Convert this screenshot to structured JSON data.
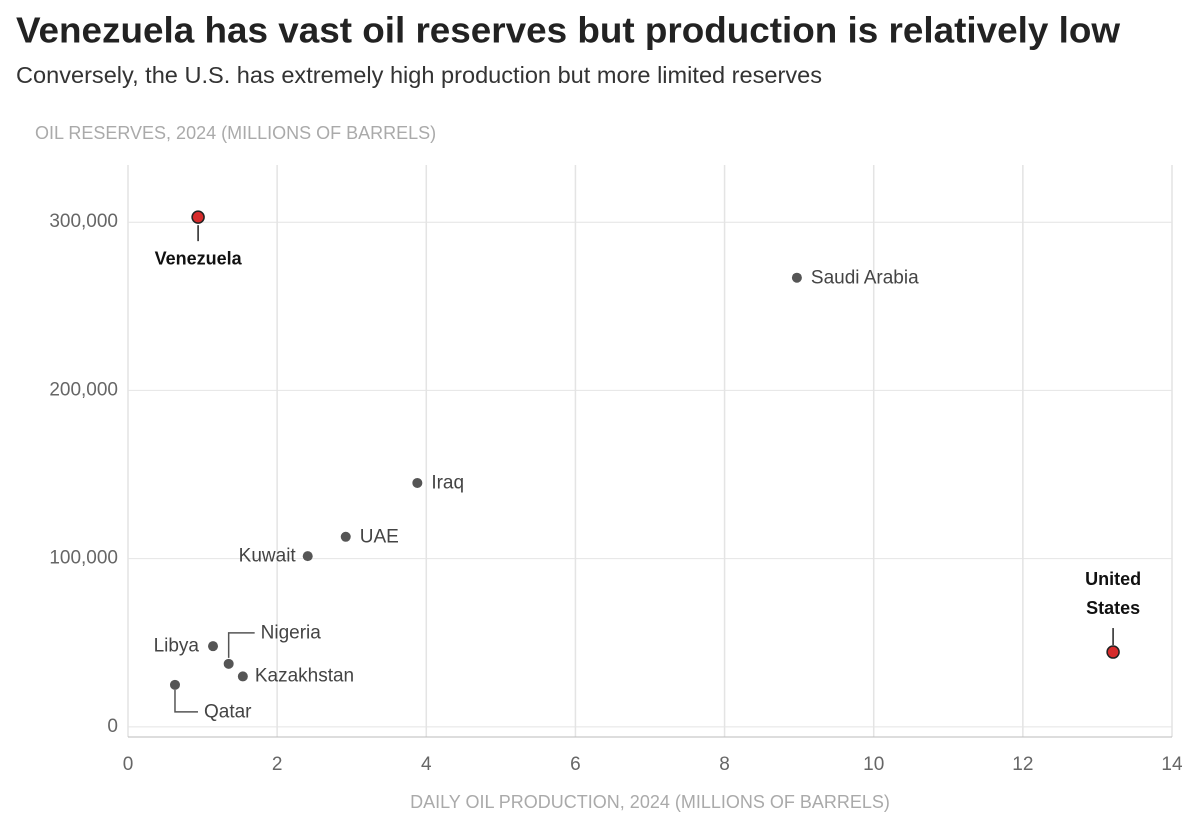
{
  "chart_data": {
    "type": "scatter",
    "title": "Venezuela has vast oil reserves but production is relatively low",
    "subtitle": "Conversely, the U.S. has extremely high production but more limited reserves",
    "y_label": "OIL RESERVES, 2024 (MILLIONS OF BARRELS)",
    "x_label": "DAILY OIL PRODUCTION, 2024 (MILLIONS OF BARRELS)",
    "labels": [
      "Venezuela",
      "Saudi Arabia",
      "Iraq",
      "UAE",
      "Kuwait",
      "Libya",
      "Nigeria",
      "Kazakhstan",
      "Qatar",
      "United States"
    ],
    "x": [
      0.94,
      8.97,
      3.88,
      2.92,
      2.41,
      1.14,
      1.35,
      1.54,
      0.63,
      13.21
    ],
    "y": [
      303000,
      267000,
      145000,
      113000,
      101500,
      48000,
      37500,
      30000,
      25000,
      44500
    ],
    "colors": [
      "#d62b2b",
      "#555555",
      "#555555",
      "#555555",
      "#555555",
      "#555555",
      "#555555",
      "#555555",
      "#555555",
      "#d62b2b"
    ],
    "highlight": [
      true,
      false,
      false,
      false,
      false,
      false,
      false,
      false,
      false,
      true
    ],
    "xlim": [
      0,
      14
    ],
    "xticks": [
      0,
      2,
      4,
      6,
      8,
      10,
      12,
      14
    ],
    "ylim": [
      -6000,
      334000
    ],
    "yticks": [
      0,
      {
        "value": 100000,
        "label": "100,000"
      },
      {
        "value": 200000,
        "label": "200,000"
      },
      {
        "value": 300000,
        "label": "300,000"
      }
    ],
    "grid": true
  }
}
